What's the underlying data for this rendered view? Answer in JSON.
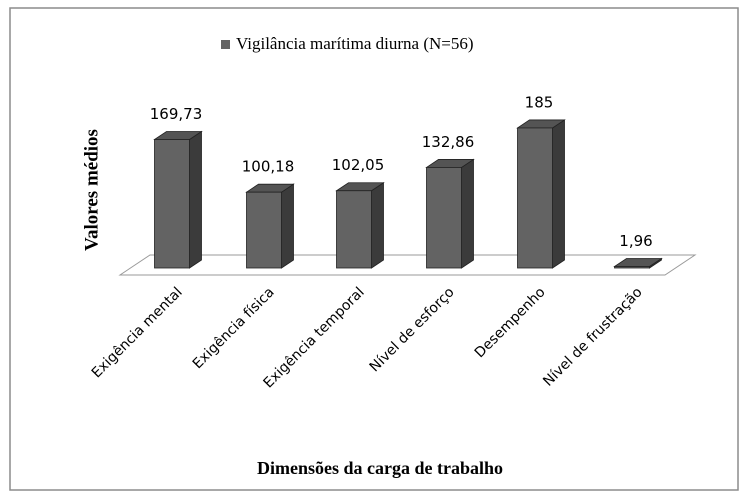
{
  "chart_data": {
    "type": "bar3d",
    "legend_label": "Vigilância marítima diurna (N=56)",
    "y_label": "Valores médios",
    "x_label": "Dimensões da carga de trabalho",
    "categories": [
      "Exigência mental",
      "Exigência física",
      "Exigência temporal",
      "Nível de esforço",
      "Desempenho",
      "Nível de frustração"
    ],
    "values": [
      169.73,
      100.18,
      102.05,
      132.86,
      185,
      1.96
    ],
    "value_labels": [
      "169,73",
      "100,18",
      "102,05",
      "132,86",
      "185",
      "1,96"
    ],
    "color": "#636363"
  }
}
